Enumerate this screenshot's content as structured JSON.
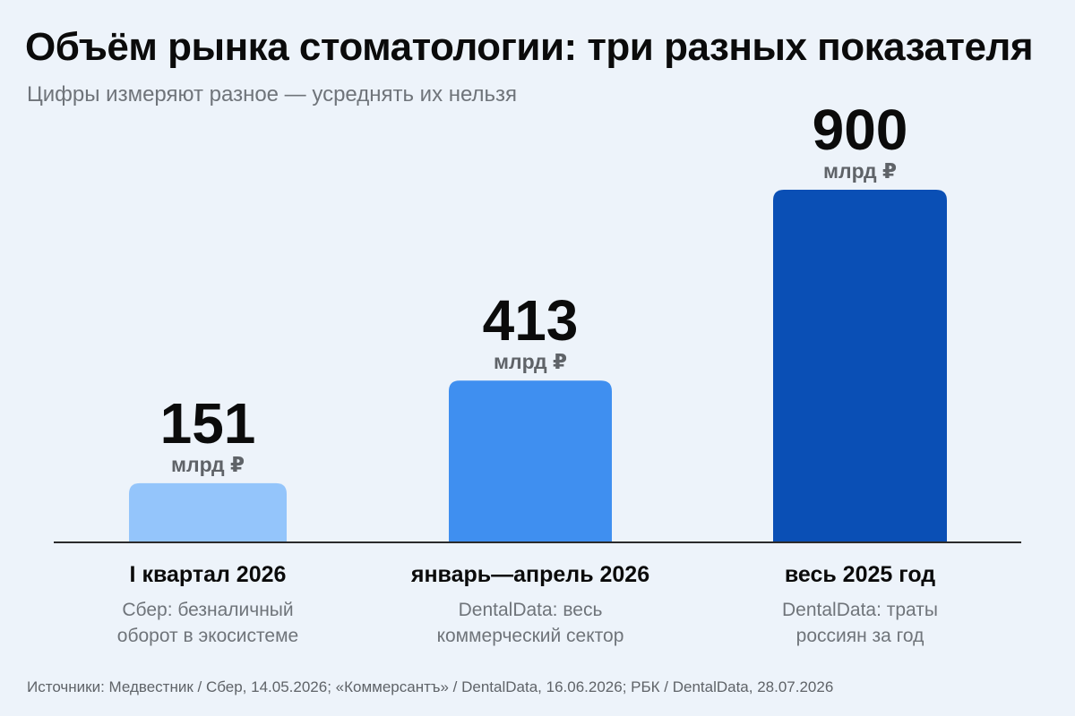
{
  "chart_data": {
    "type": "bar",
    "title": "Объём рынка стоматологии: три разных показателя",
    "subtitle": "Цифры измеряют разное — усреднять их нельзя",
    "categories": [
      "I квартал 2026",
      "январь—апрель 2026",
      "весь 2025 год"
    ],
    "values": [
      151,
      413,
      900
    ],
    "value_labels": [
      "151",
      "413",
      "900"
    ],
    "unit": "млрд ₽",
    "notes": [
      [
        "Сбер: безналичный",
        "оборот в экосистеме"
      ],
      [
        "DentalData: весь",
        "коммерческий сектор"
      ],
      [
        "DentalData: траты",
        "россиян за год"
      ]
    ],
    "colors": [
      "#94c5fb",
      "#3f8ff0",
      "#0a4fb5"
    ],
    "ylim": [
      0,
      900
    ],
    "grid": false,
    "legend": "none",
    "xlabel": "",
    "ylabel": ""
  },
  "source": "Источники: Медвестник / Сбер, 14.05.2026; «Коммерсантъ» / DentalData, 16.06.2026; РБК / DentalData, 28.07.2026"
}
